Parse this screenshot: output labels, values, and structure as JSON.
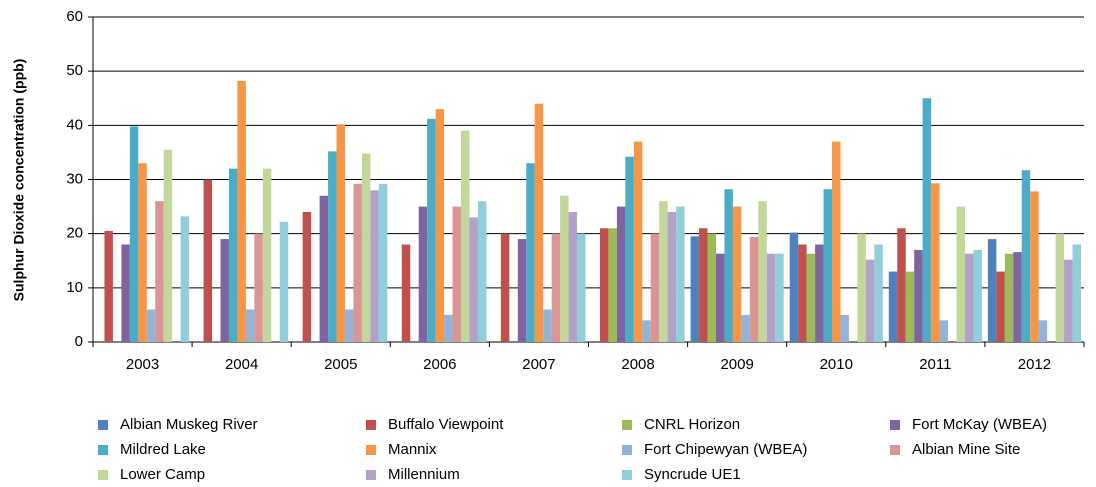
{
  "chart_data": {
    "type": "bar",
    "y_label": "Sulphur Dioxide concentration (ppb)",
    "categories": [
      "2003",
      "2004",
      "2005",
      "2006",
      "2007",
      "2008",
      "2009",
      "2010",
      "2011",
      "2012"
    ],
    "ylim": [
      0,
      60
    ],
    "yticks": [
      0,
      10,
      20,
      30,
      40,
      50,
      60
    ],
    "grid": true,
    "series": [
      {
        "name": "Albian Muskeg River",
        "color": "#4f81bd",
        "values": [
          null,
          null,
          null,
          null,
          null,
          null,
          19.5,
          20.2,
          13,
          19
        ]
      },
      {
        "name": "Buffalo Viewpoint",
        "color": "#c0504d",
        "values": [
          20.5,
          30,
          24,
          18,
          20,
          21,
          21,
          18,
          21,
          13
        ]
      },
      {
        "name": "CNRL Horizon",
        "color": "#9bbb59",
        "values": [
          null,
          null,
          null,
          null,
          null,
          21,
          20,
          16.3,
          13,
          16.3
        ]
      },
      {
        "name": "Fort McKay (WBEA)",
        "color": "#8064a2",
        "values": [
          18,
          19,
          27,
          25,
          19,
          25,
          16.3,
          18,
          17,
          16.6
        ]
      },
      {
        "name": "Mildred Lake",
        "color": "#4bacc6",
        "values": [
          39.8,
          32,
          35.2,
          41.2,
          33,
          34.2,
          28.2,
          28.2,
          45,
          31.7
        ]
      },
      {
        "name": "Mannix",
        "color": "#f79646",
        "values": [
          33,
          48.2,
          40.2,
          43,
          44,
          37,
          25,
          37,
          29.3,
          27.8
        ]
      },
      {
        "name": "Fort Chipewyan (WBEA)",
        "color": "#95b3d7",
        "values": [
          6,
          6,
          6,
          5,
          6,
          4,
          5,
          5,
          4,
          4
        ]
      },
      {
        "name": "Albian Mine Site",
        "color": "#d99694",
        "values": [
          26,
          20,
          29.2,
          25,
          20,
          20,
          19.4,
          null,
          null,
          null
        ]
      },
      {
        "name": "Lower Camp",
        "color": "#c3d69b",
        "values": [
          35.5,
          32,
          34.8,
          39,
          27,
          26,
          26,
          20,
          25,
          20
        ]
      },
      {
        "name": "Millennium",
        "color": "#b3a2c7",
        "values": [
          null,
          null,
          28,
          23,
          24,
          24,
          16.3,
          15.2,
          16.3,
          15.2
        ]
      },
      {
        "name": "Syncrude UE1",
        "color": "#92cddc",
        "values": [
          23.2,
          22.2,
          29.2,
          26,
          20,
          25,
          16.3,
          18,
          17,
          18
        ]
      }
    ]
  }
}
